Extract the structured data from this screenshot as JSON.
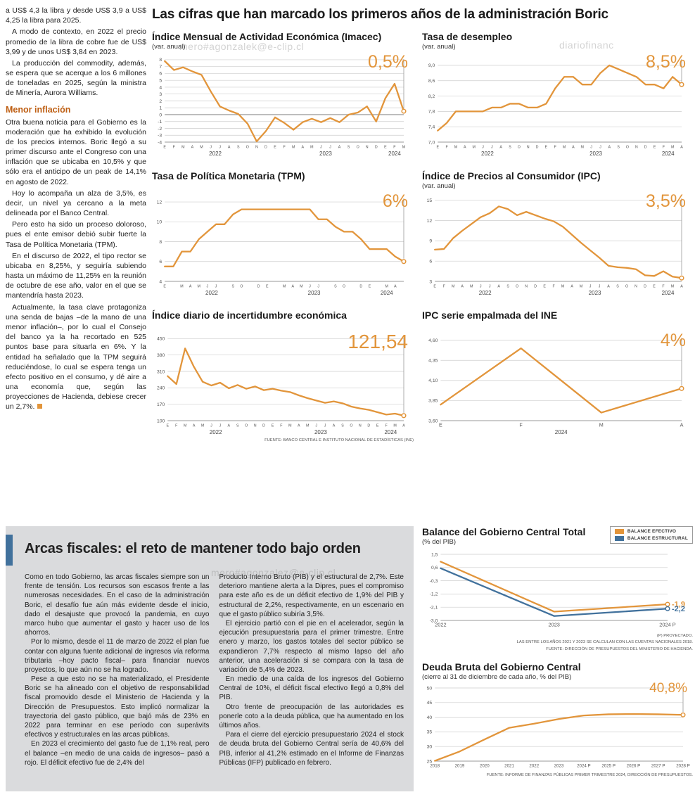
{
  "colors": {
    "accent": "#E2953B",
    "blue": "#41719C",
    "subhead": "#BE5E12",
    "panel_bg": "#DADBDD",
    "text": "#1F1F1F"
  },
  "watermarks": [
    "mero#agonzalek@e-clip.cl",
    "diariofinanc",
    "mero#agonzalez@e-clip.cl"
  ],
  "left_column": {
    "paragraphs_top": [
      "a US$ 4,3 la libra y desde US$ 3,9 a US$ 4,25 la libra para 2025.",
      "A modo de contexto, en 2022 el precio promedio de la libra de cobre fue de US$ 3,99 y de unos US$ 3,84 en 2023.",
      "La producción del commodity, además, se espera que se acerque a los 6 millones de toneladas en 2025, según la ministra de Minería, Aurora Williams."
    ],
    "subheading": "Menor inflación",
    "paragraphs_bottom": [
      "Otra buena noticia para el Gobierno es la moderación que ha exhibido la evolución de los precios internos. Boric llegó a su primer discurso ante el Congreso con una inflación que se ubicaba en 10,5% y que sólo era el anticipo de un peak de 14,1% en agosto de 2022.",
      "Hoy lo acompaña un alza de 3,5%, es decir, un nivel ya cercano a la meta delineada por el Banco Central.",
      "Pero esto ha sido un proceso doloroso, pues el ente emisor debió subir fuerte la Tasa de Política Monetaria (TPM).",
      "En el discurso de 2022, el tipo rector se ubicaba en 8,25%, y seguiría subiendo hasta un máximo de 11,25% en la reunión de octubre de ese año, valor en el que se mantendría hasta 2023.",
      "Actualmente, la tasa clave protagoniza una senda de bajas –de la mano de una menor inflación–, por lo cual el Consejo del banco ya la ha recortado en 525 puntos base para situarla en 6%. Y la entidad ha señalado que la TPM seguirá reduciéndose, lo cual se espera tenga un efecto positivo en el consumo, y dé aire a una economía que, según las proyecciones de Hacienda, debiese crecer un 2,7%."
    ]
  },
  "main": {
    "title": "Las cifras que han marcado los primeros años de la administración Boric"
  },
  "chart_data": [
    {
      "id": "imacec",
      "type": "line",
      "title": "Índice Mensual de Actividad Económica (Imacec)",
      "subtitle": "(var. anual)",
      "highlight": "0,5%",
      "ylim": [
        -4,
        8.3
      ],
      "yticks": [
        8,
        7,
        6,
        5,
        4,
        3,
        2,
        1,
        0,
        -1,
        -2,
        -3,
        -4
      ],
      "zero_line": true,
      "x_labels": [
        "E",
        "F",
        "M",
        "A",
        "M",
        "J",
        "J",
        "A",
        "S",
        "O",
        "N",
        "D",
        "E",
        "F",
        "M",
        "A",
        "M",
        "J",
        "J",
        "A",
        "S",
        "O",
        "N",
        "D",
        "E",
        "F",
        "M"
      ],
      "years": [
        {
          "label": "2022",
          "from": 0,
          "to": 11
        },
        {
          "label": "2023",
          "from": 12,
          "to": 23
        },
        {
          "label": "2024",
          "from": 24,
          "to": 26
        }
      ],
      "series": [
        {
          "name": "Imacec var. anual",
          "color": "accent",
          "values": [
            7.8,
            6.5,
            6.9,
            6.3,
            5.8,
            3.4,
            1.2,
            0.6,
            0.1,
            -1.3,
            -3.9,
            -2.4,
            -0.4,
            -1.2,
            -2.2,
            -1.1,
            -0.6,
            -1.1,
            -0.5,
            -1.1,
            0.0,
            0.3,
            1.2,
            -1.0,
            2.4,
            4.5,
            0.5
          ]
        }
      ]
    },
    {
      "id": "desempleo",
      "type": "line",
      "title": "Tasa de desempleo",
      "subtitle": "(var. anual)",
      "highlight": "8,5%",
      "ylim": [
        7.0,
        9.2
      ],
      "yticks": [
        {
          "v": 9.0,
          "label": "9,0"
        },
        {
          "v": 8.6,
          "label": "8,6"
        },
        {
          "v": 8.2,
          "label": "8,2"
        },
        {
          "v": 7.8,
          "label": "7,8"
        },
        {
          "v": 7.4,
          "label": "7,4"
        },
        {
          "v": 7.0,
          "label": "7,0"
        }
      ],
      "x_labels": [
        "E",
        "F",
        "M",
        "A",
        "M",
        "J",
        "J",
        "A",
        "S",
        "O",
        "N",
        "D",
        "E",
        "F",
        "M",
        "A",
        "M",
        "J",
        "J",
        "A",
        "S",
        "O",
        "N",
        "D",
        "E",
        "F",
        "M",
        "A"
      ],
      "years": [
        {
          "label": "2022",
          "from": 0,
          "to": 11
        },
        {
          "label": "2023",
          "from": 12,
          "to": 23
        },
        {
          "label": "2024",
          "from": 24,
          "to": 27
        }
      ],
      "series": [
        {
          "name": "Tasa de desempleo",
          "color": "accent",
          "values": [
            7.3,
            7.5,
            7.8,
            7.8,
            7.8,
            7.8,
            7.9,
            7.9,
            8.0,
            8.0,
            7.9,
            7.9,
            8.0,
            8.4,
            8.7,
            8.7,
            8.5,
            8.5,
            8.8,
            9.0,
            8.9,
            8.8,
            8.7,
            8.5,
            8.5,
            8.4,
            8.7,
            8.5
          ]
        }
      ]
    },
    {
      "id": "tpm",
      "type": "line",
      "title": "Tasa de Política Monetaria (TPM)",
      "subtitle": "",
      "highlight": "6%",
      "ylim": [
        4,
        12.5
      ],
      "yticks": [
        12,
        10,
        8,
        6,
        4
      ],
      "x_labels": [
        "E",
        "",
        "M",
        "A",
        "M",
        "J",
        "J",
        "",
        "S",
        "O",
        "",
        "D",
        "E",
        "",
        "M",
        "A",
        "M",
        "J",
        "J",
        "",
        "S",
        "O",
        "",
        "D",
        "E",
        "",
        "M",
        "A",
        ""
      ],
      "years": [
        {
          "label": "2022",
          "from": 0,
          "to": 11
        },
        {
          "label": "2023",
          "from": 12,
          "to": 23
        },
        {
          "label": "2024",
          "from": 24,
          "to": 28
        }
      ],
      "series": [
        {
          "name": "TPM",
          "color": "accent",
          "values": [
            5.5,
            5.5,
            7.0,
            7.0,
            8.25,
            9.0,
            9.75,
            9.75,
            10.75,
            11.25,
            11.25,
            11.25,
            11.25,
            11.25,
            11.25,
            11.25,
            11.25,
            11.25,
            10.25,
            10.25,
            9.5,
            9.0,
            9.0,
            8.25,
            7.25,
            7.25,
            7.25,
            6.5,
            6.0
          ]
        }
      ]
    },
    {
      "id": "ipc",
      "type": "line",
      "title": "Índice de Precios al Consumidor (IPC)",
      "subtitle": "(var. anual)",
      "highlight": "3,5%",
      "ylim": [
        3,
        15.5
      ],
      "yticks": [
        15,
        12,
        9,
        6,
        3
      ],
      "x_labels": [
        "E",
        "F",
        "M",
        "A",
        "M",
        "J",
        "J",
        "A",
        "S",
        "O",
        "N",
        "D",
        "E",
        "F",
        "M",
        "A",
        "M",
        "J",
        "J",
        "A",
        "S",
        "O",
        "N",
        "D",
        "E",
        "F",
        "M",
        "A"
      ],
      "years": [
        {
          "label": "2022",
          "from": 0,
          "to": 11
        },
        {
          "label": "2023",
          "from": 12,
          "to": 23
        },
        {
          "label": "2024",
          "from": 24,
          "to": 27
        }
      ],
      "series": [
        {
          "name": "IPC var. anual",
          "color": "accent",
          "values": [
            7.7,
            7.8,
            9.4,
            10.5,
            11.5,
            12.5,
            13.1,
            14.1,
            13.7,
            12.8,
            13.3,
            12.8,
            12.3,
            11.9,
            11.1,
            9.9,
            8.7,
            7.6,
            6.5,
            5.3,
            5.1,
            5.0,
            4.8,
            3.9,
            3.8,
            4.5,
            3.7,
            3.5
          ]
        }
      ]
    },
    {
      "id": "incertidumbre",
      "type": "line",
      "title": "Índice diario de incertidumbre económica",
      "subtitle": "",
      "highlight": "121,54",
      "ylim": [
        100,
        460
      ],
      "yticks": [
        450,
        380,
        310,
        240,
        170,
        100
      ],
      "x_labels": [
        "E",
        "F",
        "M",
        "A",
        "M",
        "J",
        "J",
        "A",
        "S",
        "O",
        "N",
        "D",
        "E",
        "F",
        "M",
        "A",
        "M",
        "J",
        "J",
        "A",
        "S",
        "O",
        "N",
        "D",
        "E",
        "F",
        "M",
        "A"
      ],
      "years": [
        {
          "label": "2022",
          "from": 0,
          "to": 11
        },
        {
          "label": "2023",
          "from": 12,
          "to": 23
        },
        {
          "label": "2024",
          "from": 24,
          "to": 27
        }
      ],
      "series": [
        {
          "name": "Incertidumbre económica",
          "color": "accent",
          "values": [
            290,
            256,
            408,
            330,
            266,
            250,
            262,
            238,
            252,
            236,
            246,
            230,
            236,
            228,
            222,
            208,
            196,
            186,
            176,
            182,
            174,
            160,
            152,
            146,
            136,
            126,
            130,
            121.54
          ]
        }
      ],
      "source": "FUENTE: BANCO CENTRAL E INSTITUTO NACIONAL DE ESTADÍSTICAS (INE)"
    },
    {
      "id": "ipc_empalmada",
      "type": "line",
      "title": "IPC serie empalmada del INE",
      "subtitle": "",
      "highlight": "4%",
      "ylim": [
        3.6,
        4.65
      ],
      "yticks": [
        {
          "v": 4.6,
          "label": "4,60"
        },
        {
          "v": 4.35,
          "label": "4,35"
        },
        {
          "v": 4.1,
          "label": "4,10"
        },
        {
          "v": 3.85,
          "label": "3,85"
        },
        {
          "v": 3.6,
          "label": "3,60"
        }
      ],
      "x_labels": [
        "E",
        "F",
        "M",
        "A"
      ],
      "years": [
        {
          "label": "2024",
          "from": 0,
          "to": 3
        }
      ],
      "series": [
        {
          "name": "IPC serie empalmada",
          "color": "accent",
          "values": [
            3.8,
            4.5,
            3.7,
            4.0
          ]
        }
      ]
    },
    {
      "id": "balance",
      "type": "line",
      "title": "Balance del Gobierno Central Total",
      "subtitle": "(% del PIB)",
      "legend": [
        "BALANCE EFECTIVO",
        "BALANCE ESTRUCTURAL"
      ],
      "ylim": [
        -3.0,
        1.5
      ],
      "yticks": [
        {
          "v": 1.5,
          "label": "1,5"
        },
        {
          "v": 0.6,
          "label": "0,6"
        },
        {
          "v": -0.3,
          "label": "-0,3"
        },
        {
          "v": -1.2,
          "label": "-1,2"
        },
        {
          "v": -2.1,
          "label": "-2,1"
        },
        {
          "v": -3.0,
          "label": "-3,0"
        }
      ],
      "x_labels": [
        "2022",
        "2023",
        "2024 P"
      ],
      "series": [
        {
          "name": "Balance efectivo",
          "color": "accent",
          "values": [
            1.0,
            -2.4,
            -1.9
          ],
          "end_label": "-1,9"
        },
        {
          "name": "Balance estructural",
          "color": "blue",
          "values": [
            0.55,
            -2.7,
            -2.2
          ],
          "end_label": "-2,2"
        }
      ],
      "footnotes": [
        "(P) PROYECTADO.",
        "LAS ENTRE LOS AÑOS 2021 Y 2023 SE CALCULAN  CON LAS CUENTAS NACIONALES 2018.",
        "FUENTE: DIRECCIÓN DE PRESUPUESTOS DEL MINISTERIO DE HACIENDA."
      ]
    },
    {
      "id": "deuda",
      "type": "line",
      "title": "Deuda Bruta del Gobierno Central",
      "subtitle": "(cierre al 31 de diciembre de cada año, % del PIB)",
      "highlight": "40,8%",
      "ylim": [
        25,
        50
      ],
      "yticks": [
        50,
        45,
        40,
        35,
        30,
        25
      ],
      "x_labels": [
        "2018",
        "2019",
        "2020",
        "2021",
        "2022",
        "2023",
        "2024 P",
        "2025 P",
        "2026 P",
        "2027 P",
        "2028 P"
      ],
      "series": [
        {
          "name": "Deuda bruta % del PIB",
          "color": "accent",
          "values": [
            25.1,
            28.3,
            32.4,
            36.4,
            37.8,
            39.4,
            40.6,
            41.0,
            41.1,
            41.0,
            40.8
          ]
        }
      ],
      "source": "FUENTE: INFORME DE FINANZAS PÚBLICAS PRIMER TRIMESTRE 2024, DIRECCIÓN DE PRESUPUESTOS."
    }
  ],
  "bottom": {
    "heading": "Arcas fiscales: el reto de mantener todo bajo orden",
    "col1_paragraphs": [
      "Como en todo Gobierno, las arcas fiscales siempre son un frente de tensión. Los recursos son escasos frente a las numerosas necesidades. En el caso de la administración Boric, el desafío fue aún más evidente desde el inicio, dado el desajuste que provocó la pandemia, en cuyo marco hubo que aumentar el gasto y hacer uso de los ahorros.",
      "Por lo mismo, desde el 11 de marzo de 2022 el plan fue contar con alguna fuente adicional de ingresos vía reforma tributaria –hoy pacto fiscal– para financiar nuevos proyectos, lo que aún no se ha logrado.",
      "Pese a que esto no se ha materializado, el Presidente Boric se ha alineado con el objetivo de responsabilidad fiscal promovido desde el Ministerio de Hacienda y la Dirección de Presupuestos. Esto implicó normalizar la trayectoria del gasto público, que bajó más de 23% en 2022 para terminar en ese período con superávits efectivos y estructurales en las arcas públicas.",
      "En 2023 el crecimiento del gasto fue de 1,1% real, pero el balance –en medio de una caída de ingresos– pasó a rojo. El déficit efectivo fue de 2,4% del"
    ],
    "col2_paragraphs": [
      "Producto Interno Bruto (PIB) y el estructural de 2,7%. Este deterioro mantiene alerta a la Dipres, pues el compromiso para este año es de un déficit efectivo de 1,9% del PIB y estructural de 2,2%, respectivamente, en un escenario en que el gasto público subiría 3,5%.",
      "El ejercicio partió con el pie en el acelerador, según la ejecución presupuestaria para el primer trimestre. Entre enero y marzo, los gastos totales del sector público se expandieron 7,7% respecto al mismo lapso del año anterior, una aceleración si se compara con la tasa de variación de 5,4% de 2023.",
      "En medio de una caída de los ingresos del Gobierno Central de 10%, el déficit fiscal efectivo llegó a 0,8% del PIB.",
      "Otro frente de preocupación de las autoridades es ponerle coto a la deuda pública, que ha aumentado en los últimos años.",
      "Para el cierre del ejercicio presupuestario 2024 el stock de deuda bruta del Gobierno Central sería de 40,6% del PIB, inferior al 41,2% estimado en el Informe de Finanzas Públicas (IFP) publicado en febrero."
    ]
  }
}
